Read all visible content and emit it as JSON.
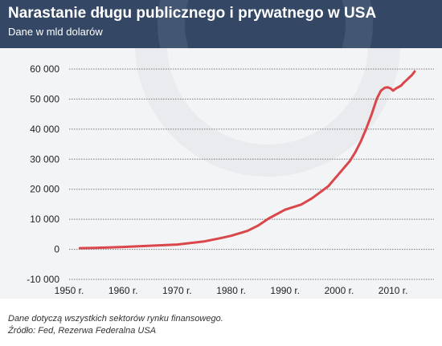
{
  "header": {
    "title": "Narastanie długu publicznego i prywatnego w USA",
    "subtitle": "Dane w mld dolarów"
  },
  "footer": {
    "note": "Dane dotyczą wszystkich sektorów rynku finansowego.",
    "source": "Źródło: Fed, Rezerwa Federalna USA"
  },
  "colors": {
    "header_bg": "#344866",
    "plot_bg": "#f3f4f6",
    "line": "#d9474b"
  },
  "chart_data": {
    "type": "line",
    "title": "Narastanie długu publicznego i prywatnego w USA",
    "subtitle": "Dane w mld dolarów",
    "xlim": [
      1950,
      2014
    ],
    "ylim": [
      -10000,
      60000
    ],
    "x_ticks": [
      1950,
      1960,
      1970,
      1980,
      1990,
      2000,
      2010
    ],
    "x_tick_labels": [
      "1950 r.",
      "1960 r.",
      "1970 r.",
      "1980 r.",
      "1990 r.",
      "2000 r.",
      "2010 r."
    ],
    "y_ticks": [
      -10000,
      0,
      10000,
      20000,
      30000,
      40000,
      50000,
      60000
    ],
    "y_tick_labels": [
      "-10 000",
      "0",
      "10 000",
      "20 000",
      "30 000",
      "40 000",
      "50 000",
      "60 000"
    ],
    "grid": "horizontal",
    "series": [
      {
        "x": [
          1952,
          1955,
          1960,
          1965,
          1970,
          1975,
          1978,
          1980,
          1983,
          1985,
          1987,
          1990,
          1993,
          1995,
          1998,
          2000,
          2002,
          2003,
          2004,
          2005,
          2006,
          2007,
          2007.75,
          2008.5,
          2009,
          2009.5,
          2010,
          2010.5,
          2011,
          2011.5,
          2012,
          2012.5,
          2013,
          2013.5,
          2014
        ],
        "y": [
          400,
          500,
          800,
          1200,
          1600,
          2600,
          3700,
          4500,
          6100,
          7900,
          10300,
          13200,
          14900,
          17000,
          21000,
          25200,
          29400,
          32300,
          35800,
          40000,
          44800,
          50200,
          52800,
          53800,
          53900,
          53600,
          52800,
          53500,
          54000,
          54500,
          55500,
          56300,
          57200,
          58000,
          59200
        ]
      }
    ]
  }
}
